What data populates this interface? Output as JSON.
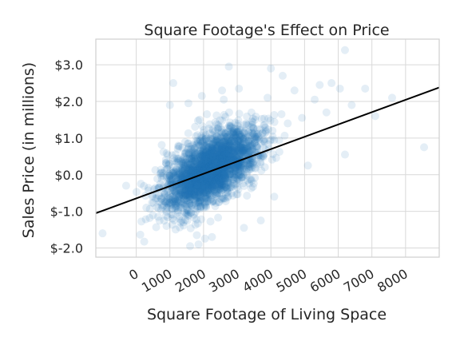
{
  "chart_data": {
    "type": "scatter",
    "title": "Square Footage's Effect on Price",
    "xlabel": "Square Footage of Living Space",
    "ylabel": "Sales Price (in millions)",
    "xlim": [
      -1200,
      9000
    ],
    "ylim": [
      -2.25,
      3.7
    ],
    "x_ticks": [
      0,
      1000,
      2000,
      3000,
      4000,
      5000,
      6000,
      7000,
      8000
    ],
    "x_tick_labels": [
      "0",
      "1000",
      "2000",
      "3000",
      "4000",
      "5000",
      "6000",
      "7000",
      "8000"
    ],
    "y_ticks": [
      3.0,
      2.0,
      1.0,
      0.0,
      -1.0,
      -2.0
    ],
    "y_tick_labels": [
      "$3.0",
      "$2.0",
      "$1.0",
      "$0.0",
      "$-1.0",
      "$-2.0"
    ],
    "grid": true,
    "legend": "none",
    "point_color": "#1f77b4",
    "point_alpha": 0.12,
    "line_color": "#000000",
    "regression_line": {
      "x": [
        -1200,
        9000
      ],
      "y": [
        -1.05,
        2.38
      ]
    },
    "density": {
      "core_center": [
        2200,
        0.15
      ],
      "core_x_spread": 700,
      "core_trend_slope_per_sqft": 0.00045,
      "core_y_spread": 0.45
    },
    "points": {
      "x": [
        -300,
        -1000,
        4000,
        4350,
        5450,
        5800,
        6050,
        6200,
        6400,
        7600,
        8550,
        6200,
        5300,
        5650,
        4700,
        1100,
        2750,
        2550,
        1800,
        1850,
        1600,
        2250,
        900,
        650,
        300,
        1400,
        3200,
        3700,
        4100,
        6800,
        7100,
        3900,
        4500,
        5100,
        1000,
        1550,
        1950,
        2100,
        2600,
        3050
      ],
      "y": [
        -0.3,
        -1.6,
        2.9,
        2.7,
        2.45,
        2.5,
        2.35,
        3.4,
        1.9,
        2.1,
        0.75,
        0.55,
        2.05,
        1.7,
        2.3,
        2.5,
        2.95,
        2.3,
        -1.65,
        -1.9,
        -1.95,
        -1.7,
        -1.4,
        -1.15,
        -0.9,
        -1.3,
        -1.45,
        -1.25,
        -0.6,
        2.35,
        1.6,
        2.1,
        1.4,
        0.25,
        1.9,
        1.95,
        2.15,
        1.65,
        2.05,
        2.35
      ]
    }
  }
}
